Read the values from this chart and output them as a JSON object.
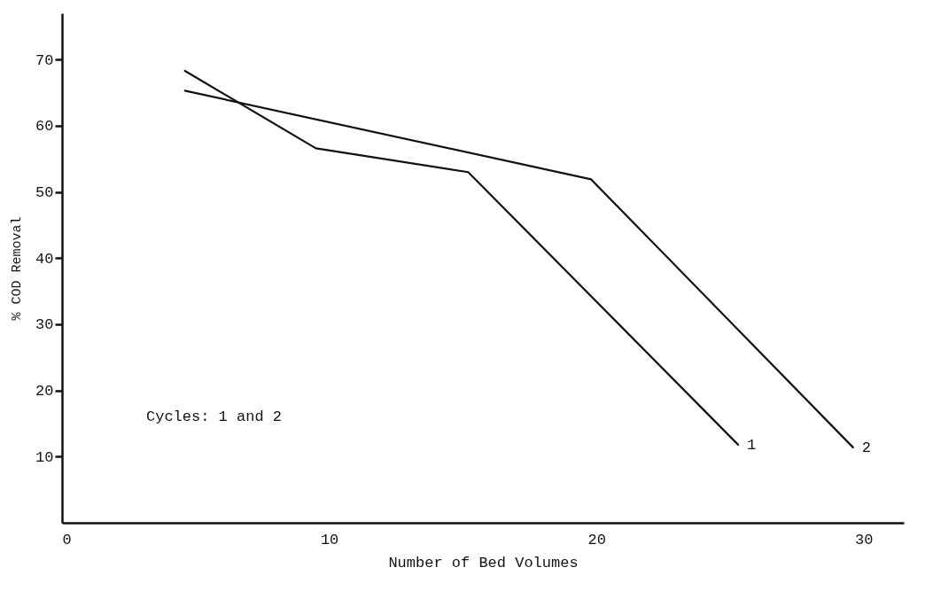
{
  "chart_data": {
    "type": "line",
    "xlabel": "Number of Bed Volumes",
    "ylabel": "% COD Removal",
    "xlim": [
      0,
      31.5
    ],
    "ylim": [
      0,
      77
    ],
    "xticks": [
      0,
      10,
      20,
      30
    ],
    "yticks": [
      10,
      20,
      30,
      40,
      50,
      60,
      70
    ],
    "grid": false,
    "legend": false,
    "marker": "none",
    "line_style": "solid",
    "annotations": [
      "Cycles: 1 and 2"
    ],
    "series": [
      {
        "name": "1",
        "color": "#111111",
        "x": [
          4.6,
          9.5,
          15.2,
          25.3
        ],
        "values": [
          68.3,
          56.6,
          53,
          11.8
        ]
      },
      {
        "name": "2",
        "color": "#111111",
        "x": [
          4.6,
          19.8,
          29.6
        ],
        "values": [
          65.3,
          51.9,
          11.4
        ]
      }
    ]
  }
}
